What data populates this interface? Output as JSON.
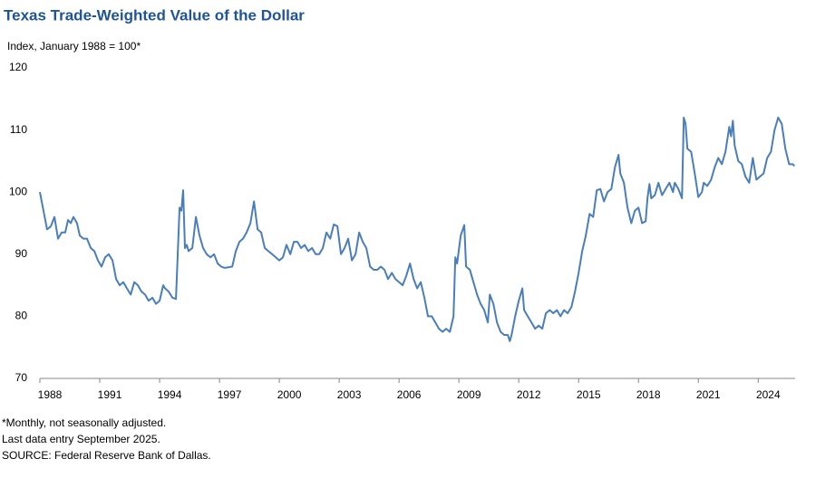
{
  "chart_data": {
    "type": "line",
    "title": "Texas Trade-Weighted Value of the Dollar",
    "y_label": "Index, January 1988 = 100*",
    "notes": [
      "*Monthly,  not seasonally  adjusted.",
      "Last data entry September  2025.",
      "SOURCE: Federal Reserve Bank of Dallas."
    ],
    "x": [
      1988.0,
      1988.18,
      1988.36,
      1988.55,
      1988.73,
      1988.91,
      1989.09,
      1989.27,
      1989.41,
      1989.55,
      1989.68,
      1989.86,
      1990.0,
      1990.18,
      1990.36,
      1990.55,
      1990.73,
      1990.91,
      1991.09,
      1991.27,
      1991.45,
      1991.64,
      1991.82,
      1992.0,
      1992.18,
      1992.36,
      1992.55,
      1992.73,
      1992.91,
      1993.09,
      1993.27,
      1993.45,
      1993.64,
      1993.82,
      1994.0,
      1994.18,
      1994.27,
      1994.45,
      1994.64,
      1994.82,
      1995.0,
      1995.09,
      1995.18,
      1995.27,
      1995.36,
      1995.45,
      1995.64,
      1995.82,
      1996.0,
      1996.18,
      1996.36,
      1996.55,
      1996.73,
      1996.91,
      1997.09,
      1997.27,
      1997.64,
      1997.82,
      1998.0,
      1998.18,
      1998.36,
      1998.55,
      1998.73,
      1998.91,
      1999.09,
      1999.27,
      1999.45,
      1999.64,
      1999.82,
      2000.0,
      2000.18,
      2000.36,
      2000.55,
      2000.73,
      2000.91,
      2001.09,
      2001.27,
      2001.45,
      2001.64,
      2001.82,
      2002.0,
      2002.18,
      2002.36,
      2002.55,
      2002.73,
      2002.91,
      2003.09,
      2003.27,
      2003.45,
      2003.64,
      2003.82,
      2004.0,
      2004.18,
      2004.36,
      2004.55,
      2004.73,
      2004.91,
      2005.09,
      2005.27,
      2005.45,
      2005.64,
      2005.82,
      2006.0,
      2006.18,
      2006.36,
      2006.55,
      2006.73,
      2006.91,
      2007.09,
      2007.27,
      2007.45,
      2007.64,
      2007.82,
      2008.0,
      2008.18,
      2008.36,
      2008.55,
      2008.73,
      2008.82,
      2008.91,
      2009.09,
      2009.27,
      2009.36,
      2009.55,
      2009.73,
      2009.91,
      2010.09,
      2010.27,
      2010.45,
      2010.55,
      2010.73,
      2010.91,
      2011.09,
      2011.27,
      2011.45,
      2011.55,
      2011.64,
      2011.82,
      2012.0,
      2012.18,
      2012.27,
      2012.45,
      2012.64,
      2012.82,
      2013.0,
      2013.18,
      2013.36,
      2013.55,
      2013.73,
      2013.91,
      2014.09,
      2014.27,
      2014.45,
      2014.64,
      2014.82,
      2015.0,
      2015.18,
      2015.36,
      2015.55,
      2015.73,
      2015.91,
      2016.09,
      2016.27,
      2016.45,
      2016.64,
      2016.82,
      2017.0,
      2017.09,
      2017.27,
      2017.45,
      2017.64,
      2017.82,
      2018.0,
      2018.18,
      2018.36,
      2018.45,
      2018.55,
      2018.64,
      2018.82,
      2019.0,
      2019.18,
      2019.36,
      2019.55,
      2019.73,
      2019.82,
      2020.0,
      2020.18,
      2020.27,
      2020.36,
      2020.45,
      2020.64,
      2020.82,
      2021.0,
      2021.18,
      2021.27,
      2021.45,
      2021.64,
      2021.82,
      2022.0,
      2022.18,
      2022.36,
      2022.55,
      2022.64,
      2022.73,
      2022.82,
      2023.0,
      2023.18,
      2023.36,
      2023.55,
      2023.73,
      2023.91,
      2024.09,
      2024.27,
      2024.45,
      2024.64,
      2024.82,
      2025.0,
      2025.18,
      2025.36,
      2025.55,
      2025.73,
      2025.82
    ],
    "series": [
      {
        "name": "Texas Trade-Weighted Value of the Dollar",
        "color": "#4a7ebb",
        "values": [
          100,
          97,
          94,
          94.5,
          96,
          92.5,
          93.5,
          93.5,
          95.5,
          95,
          96,
          95,
          93,
          92.5,
          92.5,
          91,
          90.5,
          89,
          88,
          89.5,
          90,
          89,
          86,
          85,
          85.5,
          84.5,
          83.5,
          85.5,
          85,
          84,
          83.5,
          82.5,
          83,
          82,
          82.5,
          85,
          84.5,
          84,
          83,
          82.8,
          97.5,
          97,
          100.3,
          91,
          91.5,
          90.5,
          91,
          96,
          93,
          91,
          90,
          89.5,
          90,
          88.5,
          88,
          87.8,
          88,
          90.5,
          92,
          92.5,
          93.5,
          95,
          98.5,
          94,
          93.5,
          91,
          90.5,
          90,
          89.5,
          89,
          89.5,
          91.5,
          90,
          92,
          92,
          91,
          91.5,
          90.5,
          91,
          90,
          90,
          91,
          93.5,
          92.5,
          94.8,
          94.5,
          90,
          91,
          92.5,
          89,
          90,
          93.5,
          92,
          91,
          88,
          87.5,
          87.5,
          88,
          87.5,
          86,
          87,
          86,
          85.5,
          85,
          86.5,
          88.5,
          86,
          84.5,
          85.5,
          83,
          80,
          80,
          79,
          78,
          77.5,
          78,
          77.5,
          80,
          89.5,
          88.5,
          93,
          94.7,
          88,
          87.5,
          85.5,
          83.5,
          82,
          81,
          79,
          83.5,
          82,
          79,
          77.5,
          77,
          77,
          76,
          77,
          80,
          82.5,
          84.5,
          81,
          80,
          79,
          78,
          78.5,
          78,
          80.5,
          81,
          80.5,
          81,
          80,
          81,
          80.5,
          81.5,
          84,
          87,
          90.5,
          93,
          96.5,
          96,
          100.3,
          100.5,
          98.5,
          100,
          100.5,
          104,
          106,
          103,
          101.5,
          97.5,
          95,
          97,
          97.5,
          95,
          95.3,
          99,
          101.3,
          99,
          99.5,
          101.5,
          99.5,
          100.5,
          101.5,
          100,
          101.5,
          100.5,
          99,
          112,
          111,
          107,
          106.5,
          103,
          99.2,
          100,
          101.5,
          101,
          102,
          104,
          105.5,
          104.5,
          106.5,
          110.5,
          109,
          111.5,
          107.5,
          105,
          104.5,
          102.5,
          101.5,
          105.5,
          102,
          102.5,
          103,
          105.5,
          106.5,
          110,
          112,
          111,
          107,
          104.5,
          104.5,
          104.2
        ]
      }
    ],
    "xlim": [
      1988,
      2025.85
    ],
    "xticks": [
      1988,
      1991,
      1994,
      1997,
      2000,
      2003,
      2006,
      2009,
      2012,
      2015,
      2018,
      2021,
      2024
    ],
    "ylim": [
      70,
      120
    ],
    "yticks": [
      70,
      80,
      90,
      100,
      110,
      120
    ],
    "grid": false
  }
}
